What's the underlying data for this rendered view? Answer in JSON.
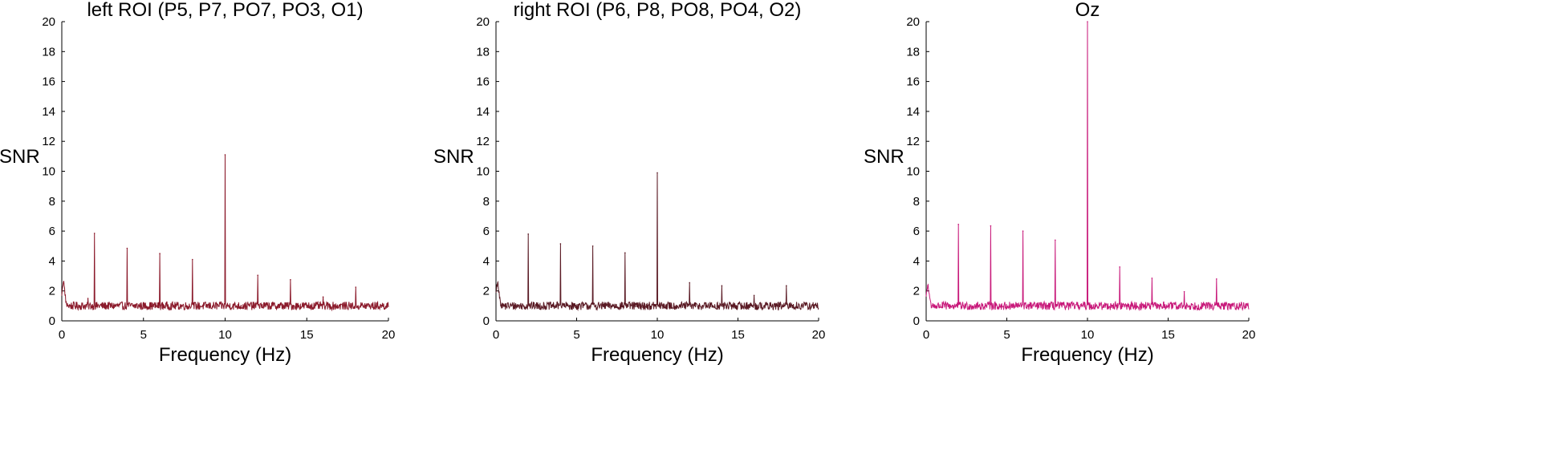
{
  "chart_data": [
    {
      "type": "line",
      "title": "left ROI (P5, P7, PO7, PO3, O1)",
      "xlabel": "Frequency (Hz)",
      "ylabel": "SNR",
      "xlim": [
        0,
        20
      ],
      "ylim": [
        0,
        20
      ],
      "xticks": [
        0,
        5,
        10,
        15,
        20
      ],
      "yticks": [
        0,
        2,
        4,
        6,
        8,
        10,
        12,
        14,
        16,
        18,
        20
      ],
      "grid": false,
      "color": "#8b1a2b",
      "baseline_snr": 1.0,
      "low_freq_peak": {
        "x": 0.1,
        "y": 2.6
      },
      "peaks": [
        {
          "x": 1.6,
          "y": 1.5
        },
        {
          "x": 2.0,
          "y": 5.85
        },
        {
          "x": 4.0,
          "y": 4.85
        },
        {
          "x": 6.0,
          "y": 4.5
        },
        {
          "x": 8.0,
          "y": 4.1
        },
        {
          "x": 10.0,
          "y": 11.1
        },
        {
          "x": 12.0,
          "y": 3.05
        },
        {
          "x": 14.0,
          "y": 2.75
        },
        {
          "x": 16.0,
          "y": 1.6
        },
        {
          "x": 18.0,
          "y": 2.25
        }
      ]
    },
    {
      "type": "line",
      "title": "right ROI (P6, P8, PO8, PO4, O2)",
      "xlabel": "Frequency (Hz)",
      "ylabel": "SNR",
      "xlim": [
        0,
        20
      ],
      "ylim": [
        0,
        20
      ],
      "xticks": [
        0,
        5,
        10,
        15,
        20
      ],
      "yticks": [
        0,
        2,
        4,
        6,
        8,
        10,
        12,
        14,
        16,
        18,
        20
      ],
      "grid": false,
      "color": "#5a1a24",
      "baseline_snr": 1.0,
      "low_freq_peak": {
        "x": 0.1,
        "y": 2.5
      },
      "peaks": [
        {
          "x": 2.0,
          "y": 5.8
        },
        {
          "x": 4.0,
          "y": 5.15
        },
        {
          "x": 6.0,
          "y": 5.0
        },
        {
          "x": 8.0,
          "y": 4.55
        },
        {
          "x": 10.0,
          "y": 9.9
        },
        {
          "x": 12.0,
          "y": 2.55
        },
        {
          "x": 14.0,
          "y": 2.35
        },
        {
          "x": 16.0,
          "y": 1.7
        },
        {
          "x": 18.0,
          "y": 2.35
        }
      ]
    },
    {
      "type": "line",
      "title": "Oz",
      "xlabel": "Frequency (Hz)",
      "ylabel": "SNR",
      "xlim": [
        0,
        20
      ],
      "ylim": [
        0,
        20
      ],
      "xticks": [
        0,
        5,
        10,
        15,
        20
      ],
      "yticks": [
        0,
        2,
        4,
        6,
        8,
        10,
        12,
        14,
        16,
        18,
        20
      ],
      "grid": false,
      "color": "#c8197a",
      "baseline_snr": 1.0,
      "low_freq_peak": {
        "x": 0.1,
        "y": 2.3
      },
      "peaks": [
        {
          "x": 2.0,
          "y": 6.45
        },
        {
          "x": 4.0,
          "y": 6.35
        },
        {
          "x": 6.0,
          "y": 6.0
        },
        {
          "x": 8.0,
          "y": 5.4
        },
        {
          "x": 10.0,
          "y": 20.0
        },
        {
          "x": 12.0,
          "y": 3.6
        },
        {
          "x": 14.0,
          "y": 2.85
        },
        {
          "x": 16.0,
          "y": 1.95
        },
        {
          "x": 18.0,
          "y": 2.8
        }
      ]
    }
  ]
}
